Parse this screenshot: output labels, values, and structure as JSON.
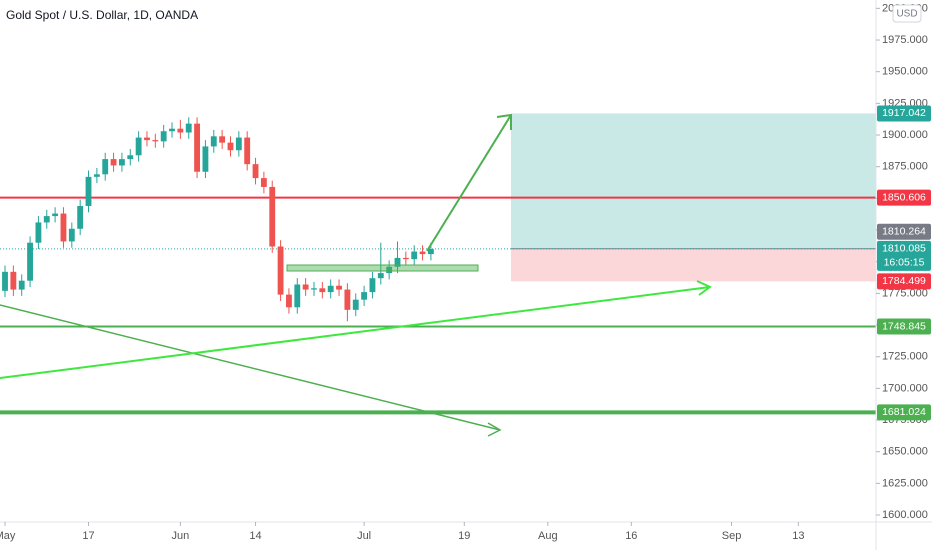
{
  "chart_data": {
    "type": "candlestick",
    "title": "Gold Spot / U.S. Dollar, 1D, OANDA",
    "currency": "USD",
    "up_color": "#26a69a",
    "down_color": "#ef5350",
    "x": [
      0,
      1,
      2,
      3,
      4,
      5,
      6,
      7,
      8,
      9,
      10,
      11,
      12,
      13,
      14,
      15,
      16,
      17,
      18,
      19,
      20,
      21,
      22,
      23,
      24,
      25,
      26,
      27,
      28,
      29,
      30,
      31,
      32,
      33,
      34,
      35,
      36,
      37,
      38,
      39,
      40,
      41,
      42,
      43,
      44,
      45,
      46,
      47,
      48,
      49,
      50,
      51
    ],
    "open": [
      1777,
      1792,
      1778,
      1785,
      1815,
      1831,
      1836,
      1838,
      1816,
      1826,
      1844,
      1867,
      1869,
      1881,
      1876,
      1881,
      1884,
      1898,
      1896,
      1895,
      1903,
      1905,
      1902,
      1909,
      1871,
      1891,
      1899,
      1894,
      1888,
      1898,
      1877,
      1866,
      1859,
      1812,
      1774,
      1764,
      1782,
      1778,
      1779,
      1776,
      1781,
      1778,
      1762,
      1770,
      1776,
      1787,
      1791,
      1796,
      1803,
      1802,
      1808,
      1806
    ],
    "high": [
      1797,
      1797,
      1790,
      1820,
      1836,
      1841,
      1843,
      1843,
      1831,
      1849,
      1872,
      1874,
      1886,
      1886,
      1886,
      1889,
      1903,
      1903,
      1901,
      1908,
      1910,
      1912,
      1914,
      1914,
      1896,
      1904,
      1904,
      1899,
      1903,
      1903,
      1882,
      1871,
      1864,
      1817,
      1779,
      1787,
      1787,
      1784,
      1784,
      1786,
      1786,
      1783,
      1775,
      1781,
      1792,
      1815,
      1801,
      1816,
      1808,
      1813,
      1813,
      1815
    ],
    "low": [
      1772,
      1773,
      1773,
      1780,
      1810,
      1826,
      1831,
      1811,
      1811,
      1821,
      1839,
      1862,
      1864,
      1871,
      1871,
      1876,
      1879,
      1891,
      1890,
      1890,
      1898,
      1897,
      1897,
      1866,
      1866,
      1886,
      1889,
      1883,
      1883,
      1872,
      1861,
      1854,
      1807,
      1769,
      1759,
      1759,
      1773,
      1773,
      1771,
      1771,
      1773,
      1753,
      1757,
      1765,
      1771,
      1782,
      1786,
      1791,
      1797,
      1797,
      1801,
      1801
    ],
    "close": [
      1792,
      1778,
      1785,
      1815,
      1831,
      1836,
      1838,
      1816,
      1826,
      1844,
      1867,
      1869,
      1881,
      1876,
      1881,
      1884,
      1898,
      1896,
      1895,
      1903,
      1905,
      1902,
      1909,
      1871,
      1891,
      1899,
      1894,
      1888,
      1898,
      1877,
      1866,
      1859,
      1812,
      1774,
      1764,
      1782,
      1778,
      1779,
      1776,
      1781,
      1778,
      1762,
      1770,
      1776,
      1787,
      1791,
      1796,
      1803,
      1802,
      1808,
      1806,
      1810
    ],
    "xlim": [
      -0.6,
      104.3
    ],
    "xticks": [
      {
        "value": 0,
        "label": "May"
      },
      {
        "value": 10,
        "label": "17"
      },
      {
        "value": 21,
        "label": "Jun"
      },
      {
        "value": 30,
        "label": "14"
      },
      {
        "value": 43,
        "label": "Jul"
      },
      {
        "value": 55,
        "label": "19"
      },
      {
        "value": 65,
        "label": "Aug"
      },
      {
        "value": 75,
        "label": "16"
      },
      {
        "value": 87,
        "label": "Sep"
      },
      {
        "value": 95,
        "label": "13"
      }
    ],
    "ylim": [
      1594.5,
      2006.6
    ],
    "yticks": [
      {
        "value": 1600,
        "label": "1600.000"
      },
      {
        "value": 1625,
        "label": "1625.000"
      },
      {
        "value": 1650,
        "label": "1650.000"
      },
      {
        "value": 1675,
        "label": "1675.000"
      },
      {
        "value": 1700,
        "label": "1700.000"
      },
      {
        "value": 1725,
        "label": "1725.000"
      },
      {
        "value": 1750,
        "label": "1750.000"
      },
      {
        "value": 1775,
        "label": "1775.000"
      },
      {
        "value": 1800,
        "label": "1800.000"
      },
      {
        "value": 1825,
        "label": "1825.000"
      },
      {
        "value": 1850,
        "label": "1850.000"
      },
      {
        "value": 1875,
        "label": "1875.000"
      },
      {
        "value": 1900,
        "label": "1900.000"
      },
      {
        "value": 1925,
        "label": "1925.000"
      },
      {
        "value": 1950,
        "label": "1950.000"
      },
      {
        "value": 1975,
        "label": "1975.000"
      },
      {
        "value": 2000,
        "label": "2000.000"
      }
    ],
    "horizontal_lines": [
      {
        "value": 1850.606,
        "color": "#f23645"
      },
      {
        "value": 1748.845,
        "color": "#4caf50"
      },
      {
        "value": 1681.024,
        "color": "#4caf50"
      }
    ],
    "position": {
      "target": 1917.042,
      "entry": 1810.264,
      "stop": 1784.499,
      "profit_color": "#26a69a",
      "loss_color": "#f23645",
      "entry_color": "#787b86"
    },
    "last_price": {
      "value": 1810.085,
      "countdown": "16:05:15",
      "color": "#26a69a"
    }
  }
}
